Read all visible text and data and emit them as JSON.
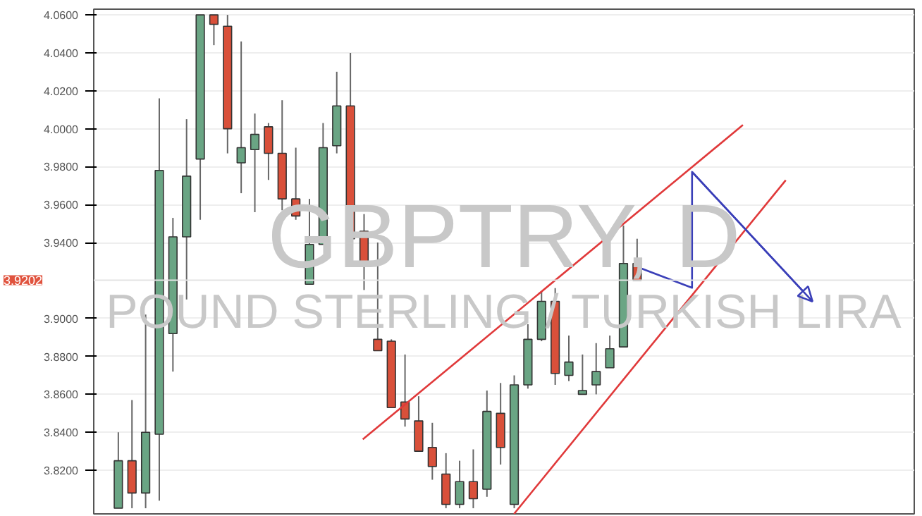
{
  "chart_data": {
    "type": "candlestick",
    "title": "GBPTRY, D",
    "subtitle": "POUND STERLING / TURKISH LIRA",
    "categories": [
      null,
      null,
      null,
      null,
      null,
      null,
      null,
      null,
      null,
      null,
      null,
      null,
      null,
      null,
      null,
      null,
      null,
      null,
      null,
      null,
      null,
      null,
      null,
      null,
      null,
      null,
      null,
      null,
      null,
      null,
      null,
      null,
      null,
      null,
      null,
      null,
      null,
      null,
      null
    ],
    "ohlc": [
      [
        3.8,
        3.84,
        3.8,
        3.825
      ],
      [
        3.825,
        3.857,
        3.8,
        3.808
      ],
      [
        3.808,
        3.902,
        3.8,
        3.84
      ],
      [
        3.839,
        4.016,
        3.804,
        3.978
      ],
      [
        3.892,
        3.953,
        3.872,
        3.943
      ],
      [
        3.943,
        4.005,
        3.91,
        3.975
      ],
      [
        3.984,
        4.06,
        3.952,
        4.06
      ],
      [
        4.06,
        4.06,
        4.044,
        4.055
      ],
      [
        4.054,
        4.06,
        3.987,
        4.0
      ],
      [
        3.982,
        4.046,
        3.966,
        3.99
      ],
      [
        3.989,
        4.008,
        3.956,
        3.997
      ],
      [
        4.001,
        4.003,
        3.973,
        3.987
      ],
      [
        3.987,
        4.015,
        3.957,
        3.963
      ],
      [
        3.963,
        3.99,
        3.952,
        3.954
      ],
      [
        3.918,
        3.963,
        3.918,
        3.939
      ],
      [
        3.939,
        4.003,
        3.939,
        3.99
      ],
      [
        3.991,
        4.03,
        3.987,
        4.012
      ],
      [
        4.012,
        4.04,
        3.942,
        3.942
      ],
      [
        3.946,
        3.955,
        3.915,
        3.928
      ],
      [
        3.889,
        3.94,
        3.883,
        3.883
      ],
      [
        3.888,
        3.889,
        3.853,
        3.853
      ],
      [
        3.856,
        3.881,
        3.843,
        3.847
      ],
      [
        3.846,
        3.859,
        3.83,
        3.83
      ],
      [
        3.832,
        3.845,
        3.815,
        3.822
      ],
      [
        3.818,
        3.829,
        3.8,
        3.802
      ],
      [
        3.802,
        3.825,
        3.8,
        3.814
      ],
      [
        3.814,
        3.831,
        3.8,
        3.805
      ],
      [
        3.81,
        3.862,
        3.806,
        3.851
      ],
      [
        3.85,
        3.866,
        3.823,
        3.832
      ],
      [
        3.802,
        3.87,
        3.8,
        3.865
      ],
      [
        3.865,
        3.897,
        3.863,
        3.889
      ],
      [
        3.889,
        3.914,
        3.888,
        3.909
      ],
      [
        3.909,
        3.916,
        3.865,
        3.871
      ],
      [
        3.87,
        3.891,
        3.867,
        3.877
      ],
      [
        3.86,
        3.881,
        3.86,
        3.862
      ],
      [
        3.865,
        3.887,
        3.86,
        3.872
      ],
      [
        3.874,
        3.891,
        3.874,
        3.884
      ],
      [
        3.885,
        3.949,
        3.885,
        3.929
      ],
      [
        3.929,
        3.942,
        3.92,
        3.92
      ]
    ],
    "colors": [
      "#6aa584",
      "#d9503a",
      "#6aa584",
      "#6aa584",
      "#6aa584",
      "#6aa584",
      "#6aa584",
      "#d9503a",
      "#d9503a",
      "#6aa584",
      "#6aa584",
      "#d9503a",
      "#d9503a",
      "#d9503a",
      "#6aa584",
      "#6aa584",
      "#6aa584",
      "#d9503a",
      "#d9503a",
      "#d9503a",
      "#d9503a",
      "#d9503a",
      "#d9503a",
      "#d9503a",
      "#d9503a",
      "#6aa584",
      "#d9503a",
      "#6aa584",
      "#d9503a",
      "#6aa584",
      "#6aa584",
      "#6aa584",
      "#d9503a",
      "#6aa584",
      "#6aa584",
      "#6aa584",
      "#6aa584",
      "#6aa584",
      "#d9503a"
    ],
    "ylim": [
      3.797,
      4.063
    ],
    "yticks": [
      {
        "value": 3.82,
        "label": "3.8200"
      },
      {
        "value": 3.84,
        "label": "3.8400"
      },
      {
        "value": 3.86,
        "label": "3.8600"
      },
      {
        "value": 3.88,
        "label": "3.8800"
      },
      {
        "value": 3.9,
        "label": "3.9000"
      },
      {
        "value": 3.94,
        "label": "3.9400"
      },
      {
        "value": 3.96,
        "label": "3.9600"
      },
      {
        "value": 3.98,
        "label": "3.9800"
      },
      {
        "value": 4.0,
        "label": "4.0000"
      },
      {
        "value": 4.02,
        "label": "4.0200"
      },
      {
        "value": 4.04,
        "label": "4.0400"
      },
      {
        "value": 4.06,
        "label": "4.0600"
      }
    ],
    "ref_lines": [
      {
        "axis": "y",
        "value": 3.9202,
        "label": "3.9202",
        "color": "#e4e4e4"
      }
    ],
    "grid": "y",
    "tick_labels": "y"
  }
}
